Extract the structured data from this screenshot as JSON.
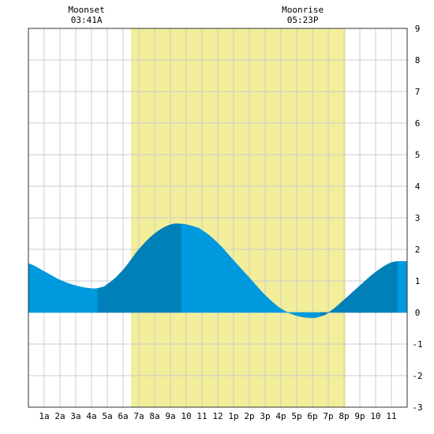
{
  "chart_data": {
    "type": "area",
    "title": "",
    "xlabel": "",
    "ylabel": "",
    "ylim": [
      -3,
      9
    ],
    "xlim": [
      0,
      24
    ],
    "grid": true,
    "x_tick_labels": [
      "1a",
      "2a",
      "3a",
      "4a",
      "5a",
      "6a",
      "7a",
      "8a",
      "9a",
      "10",
      "11",
      "12",
      "1p",
      "2p",
      "3p",
      "4p",
      "5p",
      "6p",
      "7p",
      "8p",
      "9p",
      "10",
      "11"
    ],
    "y_tick_labels": [
      "9",
      "8",
      "7",
      "6",
      "5",
      "4",
      "3",
      "2",
      "1",
      "0",
      "-1",
      "-2",
      "-3"
    ],
    "daylight": {
      "start_hour": 6.5,
      "end_hour": 20.1,
      "color": "#f2ee9a"
    },
    "moon_events": [
      {
        "label": "Moonset",
        "time": "03:41A",
        "hour": 3.68
      },
      {
        "label": "Moonrise",
        "time": "05:23P",
        "hour": 17.38
      }
    ],
    "series": [
      {
        "x": [
          0,
          1,
          2,
          3,
          4,
          4.5,
          5,
          6,
          7,
          8,
          9,
          9.8,
          10.5,
          11,
          12,
          13,
          14,
          15,
          16,
          17,
          18,
          18.5,
          19,
          20,
          21,
          22,
          23,
          24
        ],
        "values": [
          1.55,
          1.3,
          1.03,
          0.85,
          0.76,
          0.78,
          0.9,
          1.35,
          2.0,
          2.5,
          2.78,
          2.8,
          2.72,
          2.6,
          2.2,
          1.65,
          1.1,
          0.55,
          0.12,
          -0.1,
          -0.17,
          -0.12,
          0.0,
          0.4,
          0.85,
          1.28,
          1.58,
          1.62
        ]
      }
    ],
    "band_breaks": [
      0,
      4.4,
      9.7,
      18.5,
      23.4,
      24
    ],
    "colors": {
      "dark": "#0080b8",
      "light": "#0099dd",
      "grid": "#cccccc",
      "border": "#333333"
    }
  }
}
